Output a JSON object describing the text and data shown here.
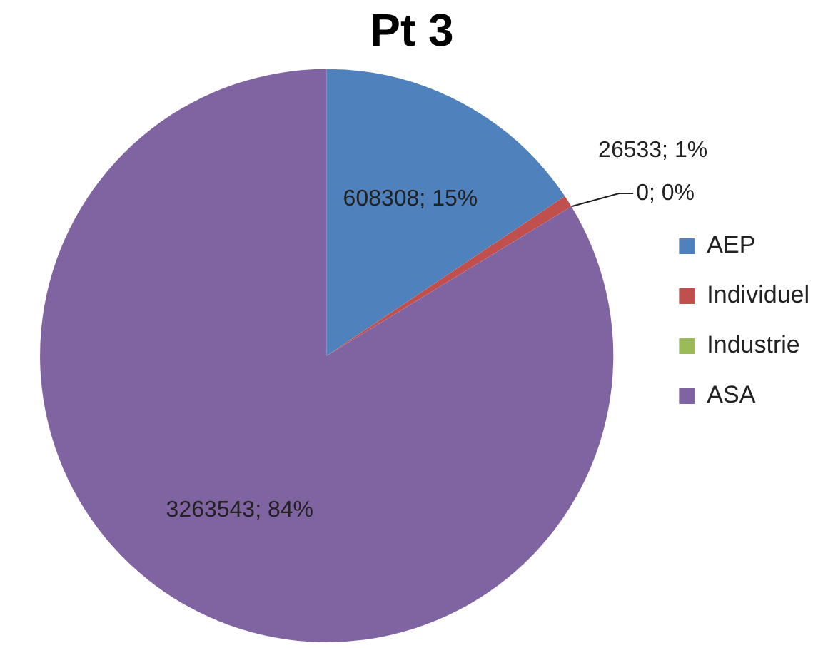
{
  "chart_data": {
    "type": "pie",
    "title": "Pt 3",
    "categories": [
      "AEP",
      "Individuel",
      "Industrie",
      "ASA"
    ],
    "values": [
      608308,
      26533,
      0,
      3263543
    ],
    "colors": [
      "#4f81bd",
      "#c0504d",
      "#9bbb59",
      "#8064a2"
    ],
    "value_labels": [
      "608308; 15%",
      "26533; 1%",
      "0; 0%",
      "3263543; 84%"
    ],
    "legend": "right"
  }
}
